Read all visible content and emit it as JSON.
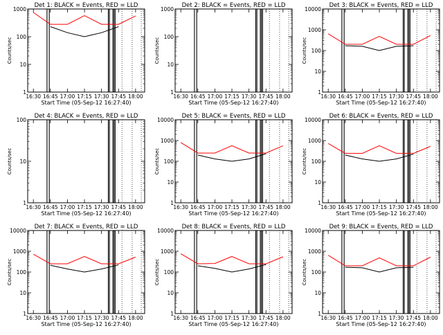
{
  "chart_data": {
    "type": "line",
    "layout": "3x3 grid of time-series panels",
    "yscale": "log",
    "xlabel": "Start Time (05-Sep-12 16:27:40)",
    "ylabel": "Counts/sec",
    "x_ticks": [
      "16:30",
      "16:45",
      "17:00",
      "17:15",
      "17:30",
      "17:45",
      "18:00"
    ],
    "panels": [
      {
        "title": "Det 1: BLACK = Events, RED = LLD",
        "ylim": [
          1,
          1000
        ],
        "y_ticks": [
          "1",
          "10",
          "100",
          "1000"
        ],
        "series": [
          {
            "name": "Events",
            "color": "#000000",
            "x": [
              "16:30",
              "16:45",
              "17:00",
              "17:15",
              "17:30",
              "17:45",
              "18:00"
            ],
            "y": [
              null,
              230,
              140,
              100,
              140,
              230,
              null
            ]
          },
          {
            "name": "LLD",
            "color": "#ff0000",
            "x": [
              "16:30",
              "16:45",
              "17:00",
              "17:15",
              "17:30",
              "17:45",
              "18:00"
            ],
            "y": [
              750,
              280,
              280,
              580,
              280,
              280,
              560
            ]
          }
        ]
      },
      {
        "title": "Det 2: BLACK = Events, RED = LLD",
        "ylim": [
          1,
          1000
        ],
        "y_ticks": [
          "1",
          "10",
          "100",
          "1000"
        ],
        "series": []
      },
      {
        "title": "Det 3: BLACK = Events, RED = LLD",
        "ylim": [
          1,
          10000
        ],
        "y_ticks": [
          "1",
          "10",
          "100",
          "1000",
          "10000"
        ],
        "series": [
          {
            "name": "Events",
            "color": "#000000",
            "x": [
              "16:30",
              "16:45",
              "17:00",
              "17:15",
              "17:30",
              "17:45",
              "18:00"
            ],
            "y": [
              null,
              170,
              160,
              100,
              160,
              170,
              null
            ]
          },
          {
            "name": "LLD",
            "color": "#ff0000",
            "x": [
              "16:30",
              "16:45",
              "17:00",
              "17:15",
              "17:30",
              "17:45",
              "18:00"
            ],
            "y": [
              640,
              200,
              200,
              480,
              200,
              200,
              530
            ]
          }
        ]
      },
      {
        "title": "Det 4: BLACK = Events, RED = LLD",
        "ylim": [
          1,
          100
        ],
        "y_ticks": [
          "1",
          "10",
          "100"
        ],
        "series": []
      },
      {
        "title": "Det 5: BLACK = Events, RED = LLD",
        "ylim": [
          1,
          10000
        ],
        "y_ticks": [
          "1",
          "10",
          "100",
          "1000",
          "10000"
        ],
        "series": [
          {
            "name": "Events",
            "color": "#000000",
            "x": [
              "16:30",
              "16:45",
              "17:00",
              "17:15",
              "17:30",
              "17:45",
              "18:00"
            ],
            "y": [
              null,
              200,
              130,
              100,
              130,
              230,
              null
            ]
          },
          {
            "name": "LLD",
            "color": "#ff0000",
            "x": [
              "16:30",
              "16:45",
              "17:00",
              "17:15",
              "17:30",
              "17:45",
              "18:00"
            ],
            "y": [
              800,
              250,
              250,
              560,
              250,
              250,
              560
            ]
          }
        ]
      },
      {
        "title": "Det 6: BLACK = Events, RED = LLD",
        "ylim": [
          1,
          10000
        ],
        "y_ticks": [
          "1",
          "10",
          "100",
          "1000",
          "10000"
        ],
        "series": [
          {
            "name": "Events",
            "color": "#000000",
            "x": [
              "16:30",
              "16:45",
              "17:00",
              "17:15",
              "17:30",
              "17:45",
              "18:00"
            ],
            "y": [
              null,
              200,
              130,
              100,
              130,
              220,
              null
            ]
          },
          {
            "name": "LLD",
            "color": "#ff0000",
            "x": [
              "16:30",
              "16:45",
              "17:00",
              "17:15",
              "17:30",
              "17:45",
              "18:00"
            ],
            "y": [
              720,
              240,
              240,
              560,
              240,
              240,
              520
            ]
          }
        ]
      },
      {
        "title": "Det 7: BLACK = Events, RED = LLD",
        "ylim": [
          1,
          10000
        ],
        "y_ticks": [
          "1",
          "10",
          "100",
          "1000",
          "10000"
        ],
        "series": [
          {
            "name": "Events",
            "color": "#000000",
            "x": [
              "16:30",
              "16:45",
              "17:00",
              "17:15",
              "17:30",
              "17:45",
              "18:00"
            ],
            "y": [
              null,
              210,
              140,
              100,
              140,
              220,
              null
            ]
          },
          {
            "name": "LLD",
            "color": "#ff0000",
            "x": [
              "16:30",
              "16:45",
              "17:00",
              "17:15",
              "17:30",
              "17:45",
              "18:00"
            ],
            "y": [
              720,
              250,
              250,
              560,
              250,
              250,
              520
            ]
          }
        ]
      },
      {
        "title": "Det 8: BLACK = Events, RED = LLD",
        "ylim": [
          1,
          10000
        ],
        "y_ticks": [
          "1",
          "10",
          "100",
          "1000",
          "10000"
        ],
        "series": [
          {
            "name": "Events",
            "color": "#000000",
            "x": [
              "16:30",
              "16:45",
              "17:00",
              "17:15",
              "17:30",
              "17:45",
              "18:00"
            ],
            "y": [
              null,
              200,
              150,
              100,
              140,
              230,
              null
            ]
          },
          {
            "name": "LLD",
            "color": "#ff0000",
            "x": [
              "16:30",
              "16:45",
              "17:00",
              "17:15",
              "17:30",
              "17:45",
              "18:00"
            ],
            "y": [
              760,
              250,
              260,
              560,
              250,
              250,
              540
            ]
          }
        ]
      },
      {
        "title": "Det 9: BLACK = Events, RED = LLD",
        "ylim": [
          1,
          10000
        ],
        "y_ticks": [
          "1",
          "10",
          "100",
          "1000",
          "10000"
        ],
        "series": [
          {
            "name": "Events",
            "color": "#000000",
            "x": [
              "16:30",
              "16:45",
              "17:00",
              "17:15",
              "17:30",
              "17:45",
              "18:00"
            ],
            "y": [
              null,
              170,
              160,
              100,
              160,
              170,
              null
            ]
          },
          {
            "name": "LLD",
            "color": "#ff0000",
            "x": [
              "16:30",
              "16:45",
              "17:00",
              "17:15",
              "17:30",
              "17:45",
              "18:00"
            ],
            "y": [
              640,
              200,
              200,
              480,
              200,
              200,
              520
            ]
          }
        ]
      }
    ],
    "grid": false,
    "legend": "in panel titles"
  }
}
